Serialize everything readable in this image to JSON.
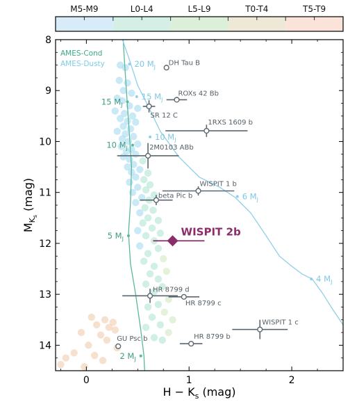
{
  "chart_data": {
    "type": "scatter",
    "xlabel": "H − K",
    "xlabel_sub": "s",
    "xlabel_unit": " (mag)",
    "ylabel": "M",
    "ylabel_sub": "K",
    "ylabel_subsub": "s",
    "ylabel_unit": " (mag)",
    "xlim": [
      -0.3,
      2.5
    ],
    "ylim": [
      14.5,
      8.0
    ],
    "xticks": [
      0,
      1,
      2
    ],
    "yticks": [
      8,
      9,
      10,
      11,
      12,
      13,
      14
    ],
    "spt_bar": {
      "labels": [
        "M5-M9",
        "L0-L4",
        "L5-L9",
        "T0-T4",
        "T5-T9"
      ],
      "colors": [
        "#d7ecf8",
        "#d4efe6",
        "#dcefd9",
        "#eee9d6",
        "#fbe3d9"
      ]
    },
    "legend": [
      {
        "name": "AMES-Cond",
        "color": "#3ea88a"
      },
      {
        "name": "AMES-Dusty",
        "color": "#7ecbe6"
      }
    ],
    "series": [
      {
        "name": "AMES-Cond",
        "color": "#5ab89a",
        "points": [
          [
            0.35,
            7.7
          ],
          [
            0.37,
            8.4
          ],
          [
            0.39,
            9.0
          ],
          [
            0.41,
            9.6
          ],
          [
            0.44,
            10.5
          ],
          [
            0.43,
            11.2
          ],
          [
            0.41,
            11.8
          ],
          [
            0.43,
            12.4
          ],
          [
            0.48,
            13.0
          ],
          [
            0.53,
            13.7
          ],
          [
            0.56,
            14.2
          ],
          [
            0.57,
            14.6
          ]
        ],
        "mass_labels": [
          {
            "label": "15 M",
            "x": 0.4,
            "y": 9.22
          },
          {
            "label": "10 M",
            "x": 0.45,
            "y": 10.07
          },
          {
            "label": "5 M",
            "x": 0.41,
            "y": 11.85
          },
          {
            "label": "2 M",
            "x": 0.53,
            "y": 14.21
          }
        ]
      },
      {
        "name": "AMES-Dusty",
        "color": "#8fcfe8",
        "points": [
          [
            0.3,
            7.7
          ],
          [
            0.42,
            8.4
          ],
          [
            0.5,
            8.9
          ],
          [
            0.6,
            9.3
          ],
          [
            0.72,
            9.8
          ],
          [
            0.9,
            10.3
          ],
          [
            1.1,
            10.7
          ],
          [
            1.3,
            10.9
          ],
          [
            1.45,
            11.1
          ],
          [
            1.6,
            11.4
          ],
          [
            1.75,
            11.85
          ],
          [
            1.88,
            12.25
          ],
          [
            2.0,
            12.45
          ],
          [
            2.1,
            12.6
          ],
          [
            2.2,
            12.7
          ],
          [
            2.3,
            12.98
          ],
          [
            2.4,
            13.3
          ],
          [
            2.5,
            13.6
          ]
        ],
        "mass_labels": [
          {
            "label": "20 M",
            "x": 0.42,
            "y": 8.48
          },
          {
            "label": "15 M",
            "x": 0.49,
            "y": 9.12
          },
          {
            "label": "10 M",
            "x": 0.62,
            "y": 9.91
          },
          {
            "label": "6 M",
            "x": 1.47,
            "y": 11.08
          },
          {
            "label": "4 M",
            "x": 2.19,
            "y": 12.7
          }
        ]
      }
    ],
    "field_objects": [
      {
        "x": 0.33,
        "y": 8.5
      },
      {
        "x": 0.38,
        "y": 8.55
      },
      {
        "x": 0.32,
        "y": 8.8
      },
      {
        "x": 0.4,
        "y": 8.85
      },
      {
        "x": 0.36,
        "y": 9.0
      },
      {
        "x": 0.44,
        "y": 9.05
      },
      {
        "x": 0.3,
        "y": 9.15
      },
      {
        "x": 0.35,
        "y": 9.2
      },
      {
        "x": 0.42,
        "y": 9.3
      },
      {
        "x": 0.5,
        "y": 9.35
      },
      {
        "x": 0.28,
        "y": 9.4
      },
      {
        "x": 0.37,
        "y": 9.45
      },
      {
        "x": 0.45,
        "y": 9.5
      },
      {
        "x": 0.33,
        "y": 9.55
      },
      {
        "x": 0.4,
        "y": 9.6
      },
      {
        "x": 0.48,
        "y": 9.62
      },
      {
        "x": 0.36,
        "y": 9.7
      },
      {
        "x": 0.43,
        "y": 9.75
      },
      {
        "x": 0.3,
        "y": 9.8
      },
      {
        "x": 0.38,
        "y": 9.85
      },
      {
        "x": 0.46,
        "y": 9.9
      },
      {
        "x": 0.35,
        "y": 9.95
      },
      {
        "x": 0.41,
        "y": 10.0
      },
      {
        "x": 0.5,
        "y": 10.05
      },
      {
        "x": 0.34,
        "y": 10.1
      },
      {
        "x": 0.44,
        "y": 10.15
      },
      {
        "x": 0.39,
        "y": 10.2
      },
      {
        "x": 0.48,
        "y": 10.25
      },
      {
        "x": 0.36,
        "y": 10.3
      },
      {
        "x": 0.42,
        "y": 10.35
      },
      {
        "x": 0.55,
        "y": 10.38
      },
      {
        "x": 0.46,
        "y": 10.45
      },
      {
        "x": 0.4,
        "y": 10.5
      },
      {
        "x": 0.52,
        "y": 10.55
      },
      {
        "x": 0.44,
        "y": 10.6
      },
      {
        "x": 0.6,
        "y": 10.62
      },
      {
        "x": 0.48,
        "y": 10.7
      },
      {
        "x": 0.56,
        "y": 10.75
      },
      {
        "x": 0.42,
        "y": 10.8
      },
      {
        "x": 0.62,
        "y": 10.85
      },
      {
        "x": 0.5,
        "y": 10.9
      },
      {
        "x": 0.58,
        "y": 10.95
      },
      {
        "x": 0.45,
        "y": 11.0
      },
      {
        "x": 0.66,
        "y": 11.05
      },
      {
        "x": 0.54,
        "y": 11.1
      },
      {
        "x": 0.61,
        "y": 11.15
      },
      {
        "x": 0.48,
        "y": 11.2
      },
      {
        "x": 0.57,
        "y": 11.3
      },
      {
        "x": 0.65,
        "y": 11.35
      },
      {
        "x": 0.52,
        "y": 11.4
      },
      {
        "x": 0.6,
        "y": 11.5
      },
      {
        "x": 0.7,
        "y": 11.55
      },
      {
        "x": 0.55,
        "y": 11.6
      },
      {
        "x": 0.64,
        "y": 11.7
      },
      {
        "x": 0.5,
        "y": 11.75
      },
      {
        "x": 0.72,
        "y": 11.8
      },
      {
        "x": 0.58,
        "y": 11.85
      },
      {
        "x": 0.66,
        "y": 11.95
      },
      {
        "x": 0.52,
        "y": 12.05
      },
      {
        "x": 0.7,
        "y": 12.1
      },
      {
        "x": 0.6,
        "y": 12.2
      },
      {
        "x": 0.75,
        "y": 12.3
      },
      {
        "x": 0.56,
        "y": 12.35
      },
      {
        "x": 0.66,
        "y": 12.45
      },
      {
        "x": 0.78,
        "y": 12.55
      },
      {
        "x": 0.62,
        "y": 12.6
      },
      {
        "x": 0.7,
        "y": 12.7
      },
      {
        "x": 0.58,
        "y": 12.8
      },
      {
        "x": 0.74,
        "y": 12.85
      },
      {
        "x": 0.66,
        "y": 12.95
      },
      {
        "x": 0.8,
        "y": 13.1
      },
      {
        "x": 0.7,
        "y": 13.2
      },
      {
        "x": 0.6,
        "y": 13.25
      },
      {
        "x": 0.76,
        "y": 13.35
      },
      {
        "x": 0.64,
        "y": 13.45
      },
      {
        "x": 0.84,
        "y": 13.5
      },
      {
        "x": 0.72,
        "y": 13.6
      },
      {
        "x": 0.58,
        "y": 13.65
      },
      {
        "x": 0.8,
        "y": 13.75
      },
      {
        "x": 0.66,
        "y": 13.85
      },
      {
        "x": 0.74,
        "y": 13.9
      },
      {
        "x": 0.05,
        "y": 13.45
      },
      {
        "x": 0.18,
        "y": 13.5
      },
      {
        "x": 0.26,
        "y": 13.55
      },
      {
        "x": 0.1,
        "y": 13.6
      },
      {
        "x": 0.22,
        "y": 13.65
      },
      {
        "x": 0.28,
        "y": 13.7
      },
      {
        "x": -0.05,
        "y": 13.75
      },
      {
        "x": 0.14,
        "y": 13.8
      },
      {
        "x": 0.2,
        "y": 13.9
      },
      {
        "x": 0.02,
        "y": 14.0
      },
      {
        "x": 0.3,
        "y": 14.05
      },
      {
        "x": -0.12,
        "y": 14.15
      },
      {
        "x": 0.08,
        "y": 14.2
      },
      {
        "x": -0.2,
        "y": 14.25
      },
      {
        "x": 0.16,
        "y": 14.3
      },
      {
        "x": -0.25,
        "y": 14.38
      },
      {
        "x": -0.02,
        "y": 14.42
      }
    ],
    "companions": [
      {
        "name": "DH Tau B",
        "x": 0.78,
        "y": 8.55,
        "xerr": 0.0,
        "yerr": 0.0
      },
      {
        "name": "ROXs 42 Bb",
        "x": 0.88,
        "y": 9.18,
        "xerr": 0.1,
        "yerr": 0.0
      },
      {
        "name": "SR 12 C",
        "x": 0.61,
        "y": 9.31,
        "xerr": 0.06,
        "yerr": 0.12
      },
      {
        "name": "1RXS 1609 b",
        "x": 1.17,
        "y": 9.79,
        "xerr": 0.4,
        "yerr": 0.12
      },
      {
        "name": "2M0103 ABb",
        "x": 0.6,
        "y": 10.28,
        "xerr": 0.3,
        "yerr": 0.25
      },
      {
        "name": "WISPIT 1 b",
        "x": 1.09,
        "y": 10.97,
        "xerr": 0.35,
        "yerr": 0.09
      },
      {
        "name": "beta Pic b",
        "x": 0.68,
        "y": 11.15,
        "xerr": 0.16,
        "yerr": 0.1
      },
      {
        "name": "HR 8799 d",
        "x": 0.62,
        "y": 13.03,
        "xerr": 0.27,
        "yerr": 0.14
      },
      {
        "name": "HR 8799 c",
        "x": 0.95,
        "y": 13.05,
        "xerr": 0.15,
        "yerr": 0.05
      },
      {
        "name": "WISPIT 1 c",
        "x": 1.69,
        "y": 13.69,
        "xerr": 0.27,
        "yerr": 0.19
      },
      {
        "name": "GU Psc b",
        "x": 0.31,
        "y": 14.02,
        "xerr": 0.0,
        "yerr": 0.0
      },
      {
        "name": "HR 8799 b",
        "x": 1.02,
        "y": 13.97,
        "xerr": 0.11,
        "yerr": 0.05
      }
    ],
    "highlight": {
      "name": "WISPIT 2b",
      "x": 0.84,
      "y": 11.95,
      "xerr_low": 0.19,
      "xerr_high": 0.31,
      "color": "#8b2d6b"
    }
  }
}
